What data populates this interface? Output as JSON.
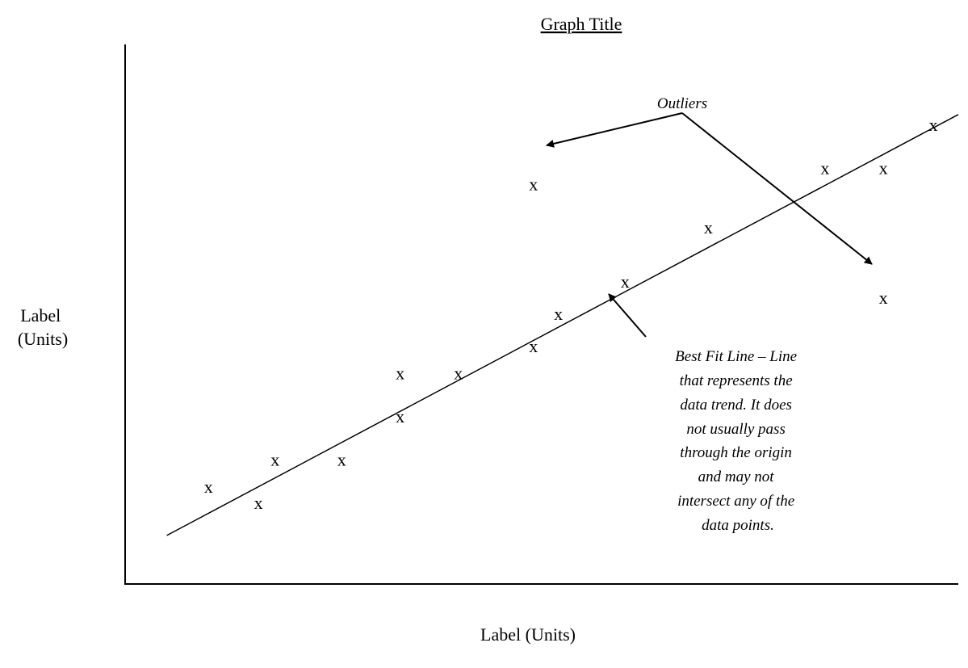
{
  "chart_data": {
    "type": "scatter",
    "title": "Graph Title",
    "xlabel": "Label (Units)",
    "ylabel": [
      "Label",
      "(Units)"
    ],
    "xlim": [
      0,
      100
    ],
    "ylim": [
      0,
      100
    ],
    "grid": false,
    "marker": "x",
    "points": [
      {
        "x": 10,
        "y": 18
      },
      {
        "x": 16,
        "y": 15
      },
      {
        "x": 18,
        "y": 23
      },
      {
        "x": 26,
        "y": 23
      },
      {
        "x": 33,
        "y": 31
      },
      {
        "x": 33,
        "y": 39
      },
      {
        "x": 40,
        "y": 39
      },
      {
        "x": 49,
        "y": 44
      },
      {
        "x": 52,
        "y": 50
      },
      {
        "x": 60,
        "y": 56
      },
      {
        "x": 70,
        "y": 66
      },
      {
        "x": 84,
        "y": 77
      },
      {
        "x": 91,
        "y": 77
      },
      {
        "x": 97,
        "y": 85
      }
    ],
    "outliers": [
      {
        "x": 49,
        "y": 74
      },
      {
        "x": 91,
        "y": 53
      }
    ],
    "best_fit": {
      "x": [
        5,
        100
      ],
      "y": [
        9,
        87
      ]
    },
    "annotations": {
      "outliers": "Outliers",
      "best_fit": [
        "Best Fit Line – Line",
        "that represents the",
        "data trend. It does",
        "not usually pass",
        "through the origin",
        "and may not",
        "intersect any of the",
        "data points."
      ]
    }
  }
}
